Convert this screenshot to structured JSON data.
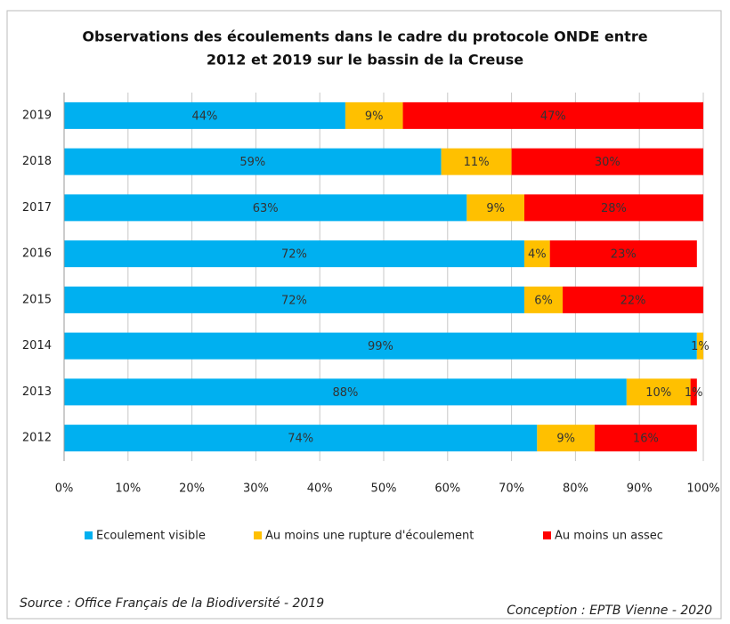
{
  "chart_data": {
    "type": "stacked-barh",
    "title": [
      "Observations des écoulements dans le cadre du protocole ONDE entre",
      "2012 et 2019 sur le bassin de la Creuse"
    ],
    "categories": [
      "2019",
      "2018",
      "2017",
      "2016",
      "2015",
      "2014",
      "2013",
      "2012"
    ],
    "series": [
      {
        "name": "Ecoulement visible",
        "color": "#00b0f0",
        "values": [
          44,
          59,
          63,
          72,
          72,
          99,
          88,
          74
        ],
        "value_labels": [
          "44%",
          "59%",
          "63%",
          "72%",
          "72%",
          "99%",
          "88%",
          "74%"
        ]
      },
      {
        "name": "Au moins une rupture d'écoulement",
        "color": "#ffc000",
        "values": [
          9,
          11,
          9,
          4,
          6,
          1,
          10,
          9
        ],
        "value_labels": [
          "9%",
          "11%",
          "9%",
          "4%",
          "6%",
          "1%",
          "10%",
          "9%"
        ]
      },
      {
        "name": "Au moins un assec",
        "color": "#ff0000",
        "values": [
          47,
          30,
          28,
          23,
          22,
          null,
          1,
          16
        ],
        "value_labels": [
          "47%",
          "30%",
          "28%",
          "23%",
          "22%",
          null,
          "1%",
          "16%"
        ]
      }
    ],
    "xlim": [
      0,
      100
    ],
    "xticks": [
      {
        "value": 0,
        "label": "0%"
      },
      {
        "value": 10,
        "label": "10%"
      },
      {
        "value": 20,
        "label": "20%"
      },
      {
        "value": 30,
        "label": "30%"
      },
      {
        "value": 40,
        "label": "40%"
      },
      {
        "value": 50,
        "label": "50%"
      },
      {
        "value": 60,
        "label": "60%"
      },
      {
        "value": 70,
        "label": "70%"
      },
      {
        "value": 80,
        "label": "80%"
      },
      {
        "value": 90,
        "label": "90%"
      },
      {
        "value": 100,
        "label": "100%"
      }
    ],
    "grid": true,
    "legend": "bottom",
    "source": "Source : Office Français de la Biodiversité - 2019",
    "credit": "Conception : EPTB Vienne - 2020"
  }
}
